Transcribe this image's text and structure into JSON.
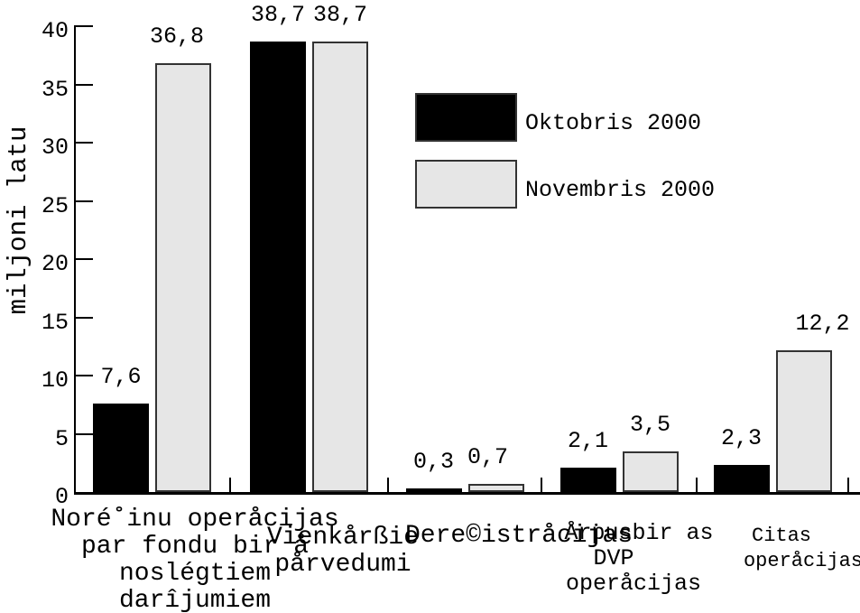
{
  "chart_data": {
    "type": "bar",
    "title": "",
    "ylabel": "miljoni latu",
    "ylim": [
      0,
      40
    ],
    "yticks": [
      0,
      5,
      10,
      15,
      20,
      25,
      30,
      35,
      40
    ],
    "grid": false,
    "legend": {
      "position": "inside-top-center",
      "entries": [
        {
          "label": "Oktobris 2000",
          "color": "#000000"
        },
        {
          "label": "Novembris 2000",
          "color": "#e6e6e6"
        }
      ]
    },
    "categories": [
      {
        "lines": [
          "Noré˚inu operåcijas",
          "par fondu bir å",
          "noslégtiem",
          "darîjumiem"
        ]
      },
      {
        "lines": [
          "Vienkårßie",
          "pårvedumi"
        ]
      },
      {
        "lines": [
          "Dere©istråcijas"
        ]
      },
      {
        "lines": [
          "Årpusbir as",
          "DVP",
          "operåcijas"
        ]
      },
      {
        "lines": [
          "Citas",
          "operåcijas"
        ]
      }
    ],
    "series": [
      {
        "name": "Oktobris 2000",
        "color": "#000000",
        "values": [
          7.6,
          38.7,
          0.3,
          2.1,
          2.3
        ],
        "value_labels": [
          "7,6",
          "38,7",
          "0,3",
          "2,1",
          "2,3"
        ]
      },
      {
        "name": "Novembris 2000",
        "color": "#e6e6e6",
        "values": [
          36.8,
          38.7,
          0.7,
          3.5,
          12.2
        ],
        "value_labels": [
          "36,8",
          "38,7",
          "0,7",
          "3,5",
          "12,2"
        ]
      }
    ],
    "colors": {
      "bar_black": "#000000",
      "bar_gray": "#e6e6e6",
      "bar_border": "#333333",
      "axis": "#000000",
      "text": "#000000",
      "background": "#ffffff"
    }
  }
}
